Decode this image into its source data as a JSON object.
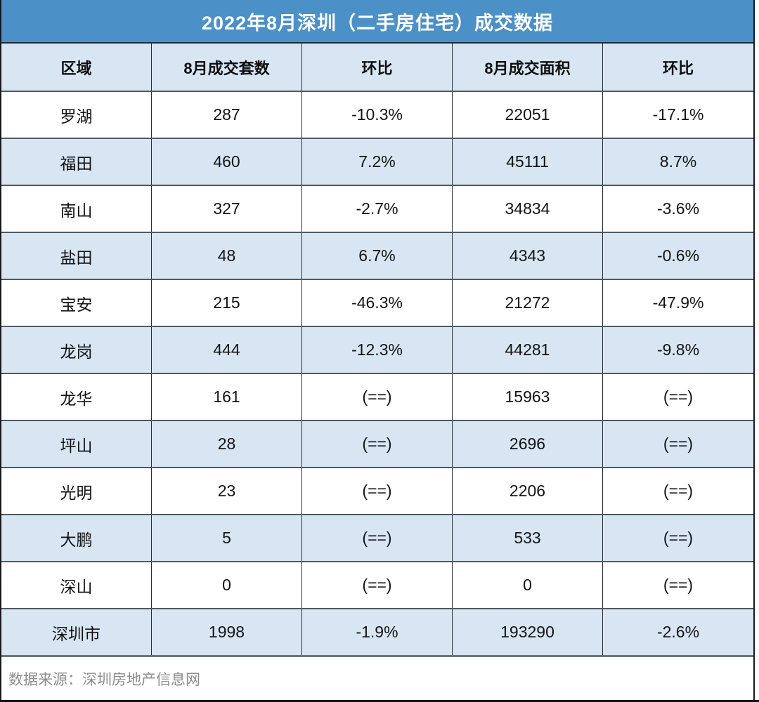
{
  "chart_data": {
    "type": "table",
    "title": "2022年8月深圳（二手房住宅）成交数据",
    "columns": [
      "区域",
      "8月成交套数",
      "环比",
      "8月成交面积",
      "环比"
    ],
    "rows": [
      [
        "罗湖",
        "287",
        "-10.3%",
        "22051",
        "-17.1%"
      ],
      [
        "福田",
        "460",
        "7.2%",
        "45111",
        "8.7%"
      ],
      [
        "南山",
        "327",
        "-2.7%",
        "34834",
        "-3.6%"
      ],
      [
        "盐田",
        "48",
        "6.7%",
        "4343",
        "-0.6%"
      ],
      [
        "宝安",
        "215",
        "-46.3%",
        "21272",
        "-47.9%"
      ],
      [
        "龙岗",
        "444",
        "-12.3%",
        "44281",
        "-9.8%"
      ],
      [
        "龙华",
        "161",
        "(==)",
        "15963",
        "(==)"
      ],
      [
        "坪山",
        "28",
        "(==)",
        "2696",
        "(==)"
      ],
      [
        "光明",
        "23",
        "(==)",
        "2206",
        "(==)"
      ],
      [
        "大鹏",
        "5",
        "(==)",
        "533",
        "(==)"
      ],
      [
        "深山",
        "0",
        "(==)",
        "0",
        "(==)"
      ],
      [
        "深圳市",
        "1998",
        "-1.9%",
        "193290",
        "-2.6%"
      ]
    ],
    "source_note": "数据来源：深圳房地产信息网"
  },
  "colors": {
    "title_bg": "#4c90c8",
    "band_bg": "#d8e6f3",
    "row_bg": "#ffffff",
    "title_text": "#ffffff",
    "body_text": "#131313",
    "footer_text": "#8d8d8d",
    "outer_border": "#17191c",
    "row_border": "#505861"
  }
}
